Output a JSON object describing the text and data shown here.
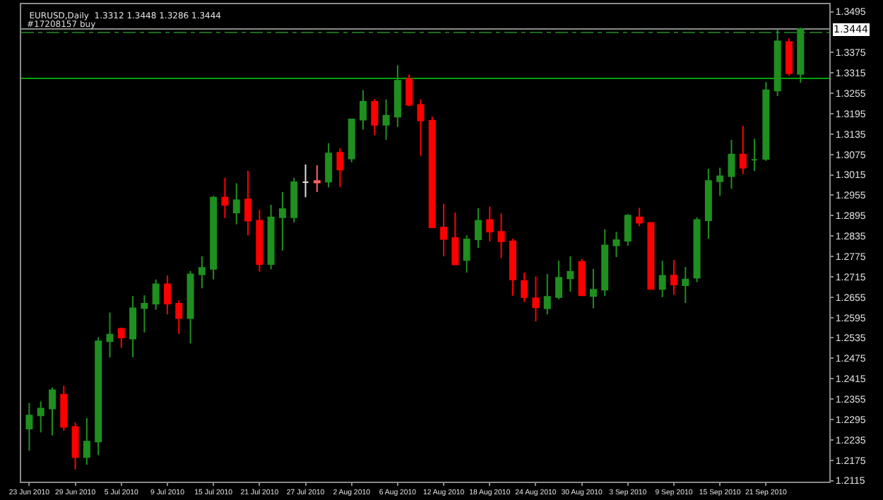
{
  "chart_data": {
    "type": "candlestick",
    "title": "EURUSD,Daily  1.3312 1.3448 1.3286 1.3444",
    "categories": [
      "23 Jun 2010",
      null,
      null,
      null,
      "29 Jun 2010",
      null,
      null,
      null,
      "5 Jul 2010",
      null,
      null,
      null,
      "9 Jul 2010",
      null,
      null,
      null,
      "15 Jul 2010",
      null,
      null,
      null,
      "21 Jul 2010",
      null,
      null,
      null,
      "27 Jul 2010",
      null,
      null,
      null,
      "2 Aug 2010",
      null,
      null,
      null,
      "6 Aug 2010",
      null,
      null,
      null,
      "12 Aug 2010",
      null,
      null,
      null,
      "18 Aug 2010",
      null,
      null,
      null,
      "24 Aug 2010",
      null,
      null,
      null,
      "30 Aug 2010",
      null,
      null,
      null,
      "3 Sep 2010",
      null,
      null,
      null,
      "9 Sep 2010",
      null,
      null,
      null,
      "15 Sep 2010",
      null,
      null,
      null,
      "21 Sep 2010",
      null,
      null,
      null
    ],
    "ohlc": [
      [
        1.2268,
        1.2344,
        1.2203,
        1.2307
      ],
      [
        1.2307,
        1.2348,
        1.2257,
        1.2327
      ],
      [
        1.2327,
        1.2389,
        1.2248,
        1.2381
      ],
      [
        1.2368,
        1.2394,
        1.2262,
        1.2273
      ],
      [
        1.2273,
        1.2286,
        1.2148,
        1.2184
      ],
      [
        1.2184,
        1.2299,
        1.2162,
        1.223
      ],
      [
        1.223,
        1.2537,
        1.219,
        1.2525
      ],
      [
        1.2525,
        1.261,
        1.2478,
        1.2545
      ],
      [
        1.2562,
        1.2565,
        1.2506,
        1.2536
      ],
      [
        1.2533,
        1.2658,
        1.2478,
        1.2622
      ],
      [
        1.2623,
        1.266,
        1.2551,
        1.2636
      ],
      [
        1.2636,
        1.2707,
        1.2618,
        1.2693
      ],
      [
        1.2693,
        1.2719,
        1.2604,
        1.2636
      ],
      [
        1.2636,
        1.2645,
        1.2547,
        1.2593
      ],
      [
        1.2593,
        1.2732,
        1.2519,
        1.2722
      ],
      [
        1.2722,
        1.2775,
        1.2681,
        1.2741
      ],
      [
        1.2738,
        1.2953,
        1.2707,
        1.2948
      ],
      [
        1.2948,
        1.3006,
        1.2888,
        1.2926
      ],
      [
        1.2904,
        1.299,
        1.2869,
        1.294
      ],
      [
        1.2943,
        1.3027,
        1.2837,
        1.288
      ],
      [
        1.288,
        1.2912,
        1.273,
        1.2752
      ],
      [
        1.2752,
        1.2927,
        1.2737,
        1.289
      ],
      [
        1.289,
        1.2964,
        1.2792,
        1.2914
      ],
      [
        1.289,
        1.3006,
        1.2875,
        1.2993
      ],
      [
        1.2993,
        1.3045,
        1.2949,
        1.2993
      ],
      [
        1.2997,
        1.3043,
        1.2964,
        1.2992
      ],
      [
        1.2995,
        1.3108,
        1.2978,
        1.3078
      ],
      [
        1.308,
        1.3093,
        1.2979,
        1.303
      ],
      [
        1.3063,
        1.318,
        1.3052,
        1.3178
      ],
      [
        1.3177,
        1.3264,
        1.3148,
        1.323
      ],
      [
        1.323,
        1.3238,
        1.3132,
        1.3162
      ],
      [
        1.3162,
        1.3237,
        1.3118,
        1.3189
      ],
      [
        1.3186,
        1.3337,
        1.3156,
        1.3292
      ],
      [
        1.3297,
        1.331,
        1.3217,
        1.3221
      ],
      [
        1.3221,
        1.3237,
        1.3071,
        1.3175
      ],
      [
        1.3174,
        1.3186,
        1.2858,
        1.286
      ],
      [
        1.286,
        1.293,
        1.2775,
        1.2826
      ],
      [
        1.2829,
        1.2904,
        1.2749,
        1.2751
      ],
      [
        1.2764,
        1.2837,
        1.2727,
        1.2825
      ],
      [
        1.2825,
        1.2917,
        1.28,
        1.288
      ],
      [
        1.2882,
        1.2921,
        1.2819,
        1.2848
      ],
      [
        1.2847,
        1.2901,
        1.277,
        1.2819
      ],
      [
        1.2819,
        1.2827,
        1.2659,
        1.2707
      ],
      [
        1.2703,
        1.2727,
        1.2641,
        1.2655
      ],
      [
        1.2652,
        1.2716,
        1.2584,
        1.2625
      ],
      [
        1.2622,
        1.2723,
        1.2604,
        1.2656
      ],
      [
        1.2655,
        1.2762,
        1.2648,
        1.2712
      ],
      [
        1.271,
        1.2775,
        1.2671,
        1.273
      ],
      [
        1.2759,
        1.2768,
        1.2658,
        1.266
      ],
      [
        1.2658,
        1.2738,
        1.2622,
        1.2677
      ],
      [
        1.2677,
        1.2855,
        1.2658,
        1.2807
      ],
      [
        1.2807,
        1.2847,
        1.2773,
        1.2823
      ],
      [
        1.2821,
        1.2899,
        1.2806,
        1.2895
      ],
      [
        1.289,
        1.2918,
        1.2864,
        1.2874
      ],
      [
        1.2874,
        1.2876,
        1.2677,
        1.2679
      ],
      [
        1.2679,
        1.2762,
        1.2655,
        1.2718
      ],
      [
        1.2719,
        1.2764,
        1.2662,
        1.2692
      ],
      [
        1.269,
        1.2744,
        1.2638,
        1.2707
      ],
      [
        1.2712,
        1.289,
        1.2699,
        1.2882
      ],
      [
        1.2881,
        1.3033,
        1.2827,
        1.2997
      ],
      [
        1.2996,
        1.3036,
        1.2953,
        1.3011
      ],
      [
        1.3011,
        1.3118,
        1.2974,
        1.3075
      ],
      [
        1.3075,
        1.3159,
        1.3017,
        1.3036
      ],
      [
        1.3059,
        1.3121,
        1.3026,
        1.3059
      ],
      [
        1.3062,
        1.3288,
        1.3056,
        1.3264
      ],
      [
        1.3263,
        1.3443,
        1.3247,
        1.3408
      ],
      [
        1.3406,
        1.3416,
        1.3307,
        1.3314
      ],
      [
        1.3312,
        1.3448,
        1.3286,
        1.3444
      ]
    ],
    "colors": [
      "#1f8f1f",
      "#1f8f1f",
      "#1f8f1f",
      "#ff0000",
      "#ff0000",
      "#1f8f1f",
      "#1f8f1f",
      "#1f8f1f",
      "#ff0000",
      "#1f8f1f",
      "#1f8f1f",
      "#1f8f1f",
      "#ff0000",
      "#ff0000",
      "#1f8f1f",
      "#1f8f1f",
      "#1f8f1f",
      "#ff0000",
      "#1f8f1f",
      "#ff0000",
      "#ff0000",
      "#1f8f1f",
      "#1f8f1f",
      "#1f8f1f",
      "#e0e0e0",
      "#ff6060",
      "#1f8f1f",
      "#ff0000",
      "#1f8f1f",
      "#1f8f1f",
      "#ff0000",
      "#1f8f1f",
      "#1f8f1f",
      "#ff0000",
      "#ff0000",
      "#ff0000",
      "#ff0000",
      "#ff0000",
      "#1f8f1f",
      "#1f8f1f",
      "#ff0000",
      "#ff0000",
      "#ff0000",
      "#ff0000",
      "#ff0000",
      "#1f8f1f",
      "#1f8f1f",
      "#1f8f1f",
      "#ff0000",
      "#1f8f1f",
      "#1f8f1f",
      "#1f8f1f",
      "#1f8f1f",
      "#ff0000",
      "#ff0000",
      "#1f8f1f",
      "#ff0000",
      "#1f8f1f",
      "#1f8f1f",
      "#1f8f1f",
      "#1f8f1f",
      "#1f8f1f",
      "#ff0000",
      "#1f8f1f",
      "#1f8f1f",
      "#1f8f1f",
      "#ff0000",
      "#1f8f1f"
    ],
    "ylim": [
      1.2112,
      1.3517
    ],
    "yticks": [
      1.2115,
      1.2175,
      1.2235,
      1.2295,
      1.2355,
      1.2415,
      1.2475,
      1.2535,
      1.2595,
      1.2655,
      1.2715,
      1.2775,
      1.2835,
      1.2895,
      1.2955,
      1.3015,
      1.3075,
      1.3135,
      1.3195,
      1.3255,
      1.3315,
      1.3375,
      1.3495
    ],
    "ref_lines": [
      {
        "axis": "y",
        "value": 1.3299,
        "color": "#00a000",
        "line_style": "solid"
      },
      {
        "axis": "y",
        "value": 1.3434,
        "label": "#17208157 buy",
        "color": "#1a6a1a",
        "line_style": "dashed"
      },
      {
        "axis": "y",
        "value": 1.3444,
        "label": "1.3444",
        "color": "#8a8a8a",
        "line_style": "solid"
      }
    ]
  }
}
